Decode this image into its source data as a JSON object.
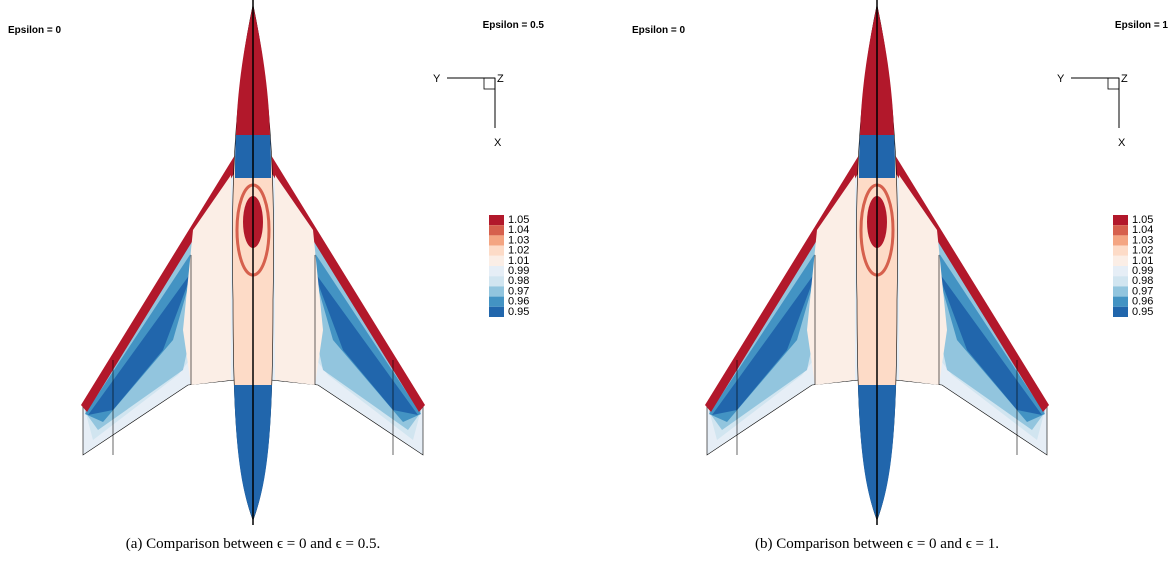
{
  "panels": [
    {
      "left_label": "Epsilon = 0",
      "right_label": "Epsilon = 0.5",
      "axes": {
        "y": "Y",
        "z": "Z",
        "x": "X"
      },
      "legend": {
        "levels": [
          1.05,
          1.04,
          1.03,
          1.02,
          1.01,
          0.99,
          0.98,
          0.97,
          0.96,
          0.95
        ],
        "colors": [
          "#b2182b",
          "#d6604d",
          "#f4a582",
          "#fddbc7",
          "#fbeee6",
          "#e6eef6",
          "#d1e5f0",
          "#92c5de",
          "#4393c3",
          "#2166ac"
        ]
      },
      "caption": "(a) Comparison between ϵ = 0 and ϵ = 0.5."
    },
    {
      "left_label": "Epsilon = 0",
      "right_label": "Epsilon = 1",
      "axes": {
        "y": "Y",
        "z": "Z",
        "x": "X"
      },
      "legend": {
        "levels": [
          1.05,
          1.04,
          1.03,
          1.02,
          1.01,
          0.99,
          0.98,
          0.97,
          0.96,
          0.95
        ],
        "colors": [
          "#b2182b",
          "#d6604d",
          "#f4a582",
          "#fddbc7",
          "#fbeee6",
          "#e6eef6",
          "#d1e5f0",
          "#92c5de",
          "#4393c3",
          "#2166ac"
        ]
      },
      "caption": "(b) Comparison between ϵ = 0 and ϵ = 1."
    }
  ]
}
